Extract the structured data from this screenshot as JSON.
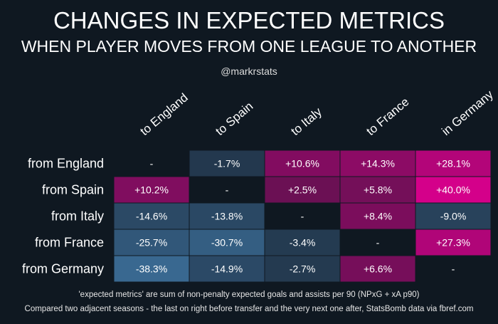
{
  "chart_data": {
    "type": "heatmap",
    "title": "CHANGES IN EXPECTED METRICS",
    "subtitle": "WHEN PLAYER MOVES FROM ONE LEAGUE TO ANOTHER",
    "credit": "@markrstats",
    "columns": [
      "to England",
      "to Spain",
      "to Italy",
      "to France",
      "in Germany"
    ],
    "rows": [
      "from England",
      "from Spain",
      "from Italy",
      "from France",
      "from Germany"
    ],
    "values": [
      [
        null,
        -1.7,
        10.6,
        14.3,
        28.1
      ],
      [
        10.2,
        null,
        2.5,
        5.8,
        40.0
      ],
      [
        -14.6,
        -13.8,
        null,
        8.4,
        -9.0
      ],
      [
        -25.7,
        -30.7,
        -3.4,
        null,
        27.3
      ],
      [
        -38.3,
        -14.9,
        -2.7,
        6.6,
        null
      ]
    ],
    "labels": [
      [
        "-",
        "-1.7%",
        "+10.6%",
        "+14.3%",
        "+28.1%"
      ],
      [
        "+10.2%",
        "-",
        "+2.5%",
        "+5.8%",
        "+40.0%"
      ],
      [
        "-14.6%",
        "-13.8%",
        "-",
        "+8.4%",
        "-9.0%"
      ],
      [
        "-25.7%",
        "-30.7%",
        "-3.4%",
        "-",
        "+27.3%"
      ],
      [
        "-38.3%",
        "-14.9%",
        "-2.7%",
        "+6.6%",
        "-"
      ]
    ],
    "colors": {
      "positive": "#d4008a",
      "negative": "#3a6a93",
      "neutral": "#0f1821"
    },
    "notes": [
      "'expected metrics' are sum of non-penalty expected goals and assists per 90 (NPxG + xA p90)",
      "Compared two adjacent seasons - the last on right before transfer and the very next one after, StatsBomb data via fbref.com"
    ]
  }
}
